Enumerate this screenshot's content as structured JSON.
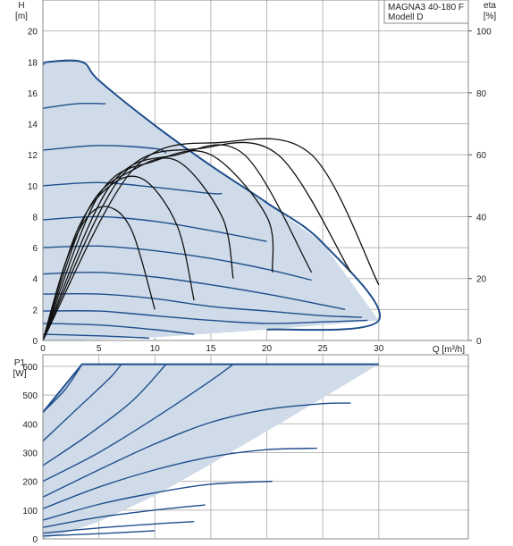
{
  "legend": {
    "line1": "MAGNA3 40-180 F",
    "line2": "Modell D"
  },
  "chart_data": [
    {
      "type": "line",
      "name": "head",
      "ylabel_line1": "H",
      "ylabel_line2": "[m]",
      "xlabel": "Q [m³/h]",
      "y2label_line1": "eta",
      "y2label_line2": "[%]",
      "xlim": [
        0,
        38
      ],
      "ylim": [
        0,
        22
      ],
      "y2lim": [
        0,
        110
      ],
      "x_ticks": [
        "0",
        "5",
        "10",
        "15",
        "20",
        "25",
        "30"
      ],
      "y_ticks": [
        "0",
        "2",
        "4",
        "6",
        "8",
        "10",
        "12",
        "14",
        "16",
        "18",
        "20"
      ],
      "y2_ticks": [
        "0",
        "20",
        "40",
        "60",
        "80",
        "100"
      ],
      "grid": true,
      "colors": {
        "curve": "#1f4e8c",
        "fill": "#cfdbe8",
        "eta": "#111111",
        "grid": "#b8b8b8"
      },
      "envelope": [
        [
          0,
          17.8
        ],
        [
          0.5,
          18
        ],
        [
          3.5,
          18
        ],
        [
          5,
          16.8
        ],
        [
          10,
          13.9
        ],
        [
          15,
          11.3
        ],
        [
          20,
          8.9
        ],
        [
          25,
          6.3
        ],
        [
          30,
          1.3
        ],
        [
          20,
          0.7
        ],
        [
          10,
          0.2
        ],
        [
          5,
          0.05
        ],
        [
          0,
          0
        ]
      ],
      "series": [
        {
          "x": [
            0,
            3,
            5.6
          ],
          "values": [
            15,
            15.3,
            15.3
          ]
        },
        {
          "x": [
            0,
            5,
            10,
            11
          ],
          "values": [
            12.3,
            12.6,
            12.4,
            12.1
          ]
        },
        {
          "x": [
            0,
            5,
            10,
            15,
            16
          ],
          "values": [
            10,
            10.2,
            9.9,
            9.5,
            9.5
          ]
        },
        {
          "x": [
            0,
            5,
            10,
            15,
            20
          ],
          "values": [
            7.8,
            8,
            7.7,
            7.1,
            6.4
          ]
        },
        {
          "x": [
            0,
            5,
            10,
            15,
            20,
            24
          ],
          "values": [
            6,
            6.1,
            5.8,
            5.3,
            4.6,
            3.9
          ]
        },
        {
          "x": [
            0,
            5,
            10,
            15,
            20,
            25,
            27
          ],
          "values": [
            4.3,
            4.4,
            4.1,
            3.6,
            3,
            2.3,
            2
          ]
        },
        {
          "x": [
            0,
            5,
            10,
            15,
            20,
            25,
            28.5
          ],
          "values": [
            3,
            3,
            2.7,
            2.2,
            1.9,
            1.6,
            1.5
          ]
        },
        {
          "x": [
            0,
            5,
            10,
            15,
            20,
            25,
            29
          ],
          "values": [
            1.9,
            1.9,
            1.6,
            1.3,
            1.1,
            1.2,
            1.3
          ]
        },
        {
          "x": [
            0,
            5,
            10,
            13.5
          ],
          "values": [
            1.1,
            1,
            0.7,
            0.4
          ]
        },
        {
          "x": [
            0,
            5,
            9.5
          ],
          "values": [
            0.4,
            0.3,
            0.15
          ]
        }
      ],
      "eta_series": [
        {
          "x": [
            0,
            2,
            4,
            6,
            8,
            10
          ],
          "values": [
            0,
            25,
            40,
            43,
            35,
            10
          ]
        },
        {
          "x": [
            0,
            3,
            6,
            9,
            12,
            13.5
          ],
          "values": [
            0,
            35,
            50,
            52,
            37,
            13
          ]
        },
        {
          "x": [
            0,
            4,
            8,
            12,
            16,
            17
          ],
          "values": [
            0,
            42,
            55,
            58,
            40,
            20
          ]
        },
        {
          "x": [
            0,
            5,
            10,
            15,
            20,
            20.5
          ],
          "values": [
            0,
            47,
            58,
            60,
            40,
            22
          ]
        },
        {
          "x": [
            0,
            6,
            12,
            18,
            24
          ],
          "values": [
            0,
            50,
            60,
            60,
            22
          ]
        },
        {
          "x": [
            0,
            7,
            14,
            21,
            27.5
          ],
          "values": [
            0,
            53,
            62,
            60,
            22
          ]
        },
        {
          "x": [
            0,
            8,
            16,
            24,
            30
          ],
          "values": [
            0,
            55,
            64,
            60,
            18
          ]
        }
      ]
    },
    {
      "type": "line",
      "name": "power",
      "ylabel_line1": "P1",
      "ylabel_line2": "[W]",
      "xlim": [
        0,
        38
      ],
      "ylim": [
        0,
        640
      ],
      "y_ticks": [
        "0",
        "100",
        "200",
        "300",
        "400",
        "500",
        "600"
      ],
      "envelope": [
        [
          0,
          440
        ],
        [
          3.5,
          607
        ],
        [
          30,
          607
        ],
        [
          28,
          560
        ],
        [
          22,
          420
        ],
        [
          15,
          260
        ],
        [
          10,
          150
        ],
        [
          5,
          60
        ],
        [
          2,
          20
        ],
        [
          0,
          0
        ]
      ],
      "series": [
        {
          "x": [
            0,
            2,
            3.5
          ],
          "values": [
            440,
            520,
            607
          ]
        },
        {
          "x": [
            0,
            3,
            6,
            7
          ],
          "values": [
            340,
            450,
            560,
            607
          ]
        },
        {
          "x": [
            0,
            4,
            8,
            11
          ],
          "values": [
            255,
            360,
            480,
            607
          ]
        },
        {
          "x": [
            0,
            5,
            10,
            15,
            17
          ],
          "values": [
            200,
            300,
            420,
            550,
            607
          ]
        },
        {
          "x": [
            0,
            5,
            10,
            15,
            20,
            25,
            27.5
          ],
          "values": [
            145,
            240,
            330,
            405,
            450,
            470,
            472
          ]
        },
        {
          "x": [
            0,
            5,
            10,
            15,
            20,
            24.5
          ],
          "values": [
            105,
            180,
            240,
            285,
            310,
            315
          ]
        },
        {
          "x": [
            0,
            5,
            10,
            15,
            20.5
          ],
          "values": [
            65,
            120,
            160,
            190,
            200
          ]
        },
        {
          "x": [
            0,
            5,
            10,
            14.5
          ],
          "values": [
            40,
            75,
            100,
            118
          ]
        },
        {
          "x": [
            0,
            5,
            10,
            13.5
          ],
          "values": [
            20,
            38,
            52,
            60
          ]
        },
        {
          "x": [
            0,
            5,
            10
          ],
          "values": [
            10,
            18,
            28
          ]
        }
      ]
    }
  ]
}
